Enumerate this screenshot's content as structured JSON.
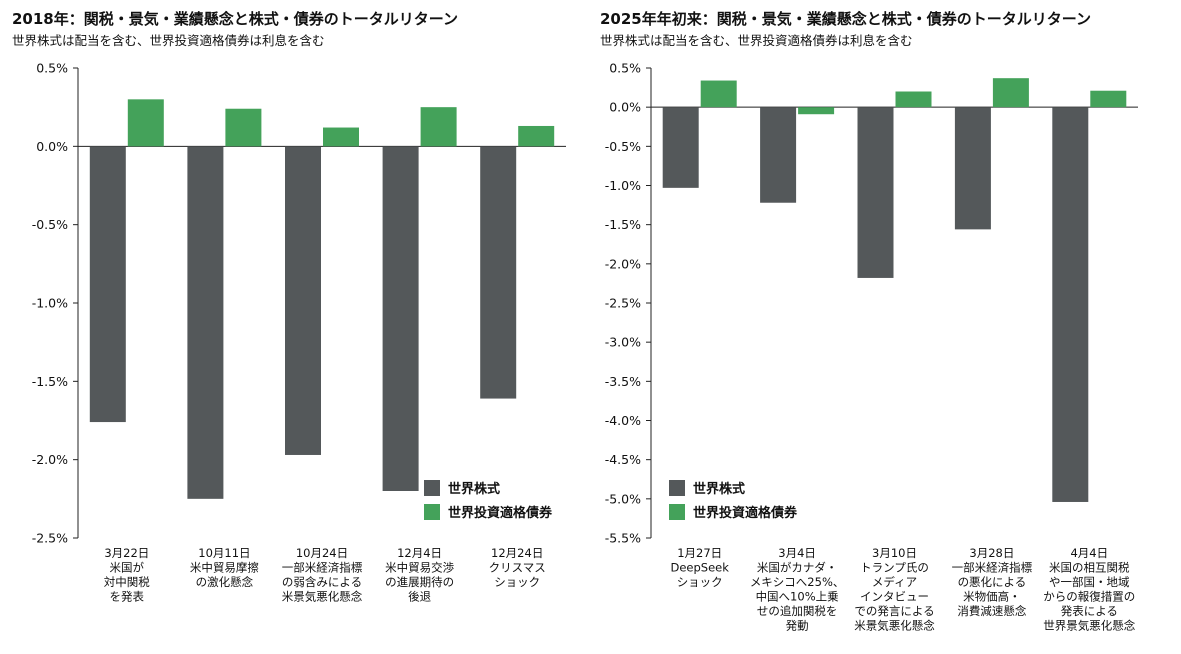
{
  "colors": {
    "stock": "#54585a",
    "bond": "#44a25a",
    "axis": "#222222"
  },
  "charts": [
    {
      "title": "2018年：関税・景気・業績懸念と株式・債券のトータルリターン",
      "subtitle": "世界株式は配当を含む、世界投資適格債券は利息を含む",
      "legend": [
        "世界株式",
        "世界投資適格債券"
      ]
    },
    {
      "title": "2025年年初来：関税・景気・業績懸念と株式・債券のトータルリターン",
      "subtitle": "世界株式は配当を含む、世界投資適格債券は利息を含む",
      "legend": [
        "世界株式",
        "世界投資適格債券"
      ]
    }
  ],
  "chart_data": [
    {
      "type": "bar",
      "title": "2018年：関税・景気・業績懸念と株式・債券のトータルリターン",
      "categories": [
        [
          "3月22日",
          "米国が",
          "対中関税",
          "を発表"
        ],
        [
          "10月11日",
          "米中貿易摩擦",
          "の激化懸念"
        ],
        [
          "10月24日",
          "一部米経済指標",
          "の弱含みによる",
          "米景気悪化懸念"
        ],
        [
          "12月4日",
          "米中貿易交渉",
          "の進展期待の",
          "後退"
        ],
        [
          "12月24日",
          "クリスマス",
          "ショック"
        ]
      ],
      "series": [
        {
          "name": "世界株式",
          "values": [
            -1.76,
            -2.25,
            -1.97,
            -2.2,
            -1.61
          ]
        },
        {
          "name": "世界投資適格債券",
          "values": [
            0.3,
            0.24,
            0.12,
            0.25,
            0.13
          ]
        }
      ],
      "ylim": [
        -2.5,
        0.5
      ],
      "yticks": [
        0.5,
        0.0,
        -0.5,
        -1.0,
        -1.5,
        -2.0,
        -2.5
      ],
      "ytick_labels": [
        "0.5%",
        "0.0%",
        "-0.5%",
        "-1.0%",
        "-1.5%",
        "-2.0%",
        "-2.5%"
      ],
      "legend_position": "bottom-right"
    },
    {
      "type": "bar",
      "title": "2025年年初来：関税・景気・業績懸念と株式・債券のトータルリターン",
      "categories": [
        [
          "1月27日",
          "DeepSeek",
          "ショック"
        ],
        [
          "3月4日",
          "米国がカナダ・",
          "メキシコへ25%、",
          "中国へ10%上乗",
          "せの追加関税を",
          "発動"
        ],
        [
          "3月10日",
          "トランプ氏の",
          "メディア",
          "インタビュー",
          "での発言による",
          "米景気悪化懸念"
        ],
        [
          "3月28日",
          "一部米経済指標",
          "の悪化による",
          "米物価高・",
          "消費減速懸念"
        ],
        [
          "4月4日",
          "米国の相互関税",
          "や一部国・地域",
          "からの報復措置の",
          "発表による",
          "世界景気悪化懸念"
        ]
      ],
      "series": [
        {
          "name": "世界株式",
          "values": [
            -1.03,
            -1.22,
            -2.18,
            -1.56,
            -5.04
          ]
        },
        {
          "name": "世界投資適格債券",
          "values": [
            0.34,
            -0.09,
            0.2,
            0.37,
            0.21
          ]
        }
      ],
      "ylim": [
        -5.5,
        0.5
      ],
      "yticks": [
        0.5,
        0.0,
        -0.5,
        -1.0,
        -1.5,
        -2.0,
        -2.5,
        -3.0,
        -3.5,
        -4.0,
        -4.5,
        -5.0,
        -5.5
      ],
      "ytick_labels": [
        "0.5%",
        "0.0%",
        "-0.5%",
        "-1.0%",
        "-1.5%",
        "-2.0%",
        "-2.5%",
        "-3.0%",
        "-3.5%",
        "-4.0%",
        "-4.5%",
        "-5.0%",
        "-5.5%"
      ],
      "legend_position": "bottom-right"
    }
  ]
}
